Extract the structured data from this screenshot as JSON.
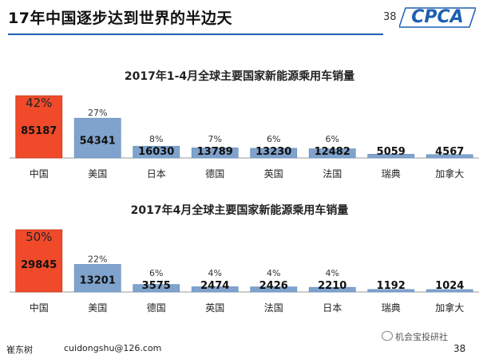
{
  "header": {
    "title": "17年中国逐步达到世界的半边天",
    "page_number": "38",
    "logo_text": "CPCA",
    "colors": {
      "accent": "#1d5fb0"
    }
  },
  "chart_data": [
    {
      "type": "bar",
      "title": "2017年1-4月全球主要国家新能源乘用车销量",
      "categories": [
        "中国",
        "美国",
        "日本",
        "德国",
        "英国",
        "法国",
        "瑞典",
        "加拿大"
      ],
      "values": [
        85187,
        54341,
        16030,
        13789,
        13230,
        12482,
        5059,
        4567
      ],
      "value_labels": [
        "85187",
        "54341",
        "16030",
        "13789",
        "13230",
        "12482",
        "5059",
        "4567"
      ],
      "percent_labels": [
        "42%",
        "27%",
        "8%",
        "7%",
        "6%",
        "6%",
        "",
        ""
      ],
      "highlight_index": 0,
      "colors": {
        "highlight": "#f04a2a",
        "bar": "#7fa3cc",
        "highlight_border": "#c4361c"
      },
      "grid": false,
      "legend": "none"
    },
    {
      "type": "bar",
      "title": "2017年4月全球主要国家新能源乘用车销量",
      "categories": [
        "中国",
        "美国",
        "德国",
        "英国",
        "法国",
        "日本",
        "瑞典",
        "加拿大"
      ],
      "values": [
        29845,
        13201,
        3575,
        2474,
        2426,
        2210,
        1192,
        1024
      ],
      "value_labels": [
        "29845",
        "13201",
        "3575",
        "2474",
        "2426",
        "2210",
        "1192",
        "1024"
      ],
      "percent_labels": [
        "50%",
        "22%",
        "6%",
        "4%",
        "4%",
        "4%",
        "",
        ""
      ],
      "highlight_index": 0,
      "colors": {
        "highlight": "#f04a2a",
        "bar": "#7fa3cc",
        "highlight_border": "#c4361c"
      },
      "grid": false,
      "legend": "none"
    }
  ],
  "footer": {
    "author": "崔东树",
    "email": "cuidongshu@126.com",
    "watermark": "机会宝投研社",
    "page_number": "38"
  }
}
